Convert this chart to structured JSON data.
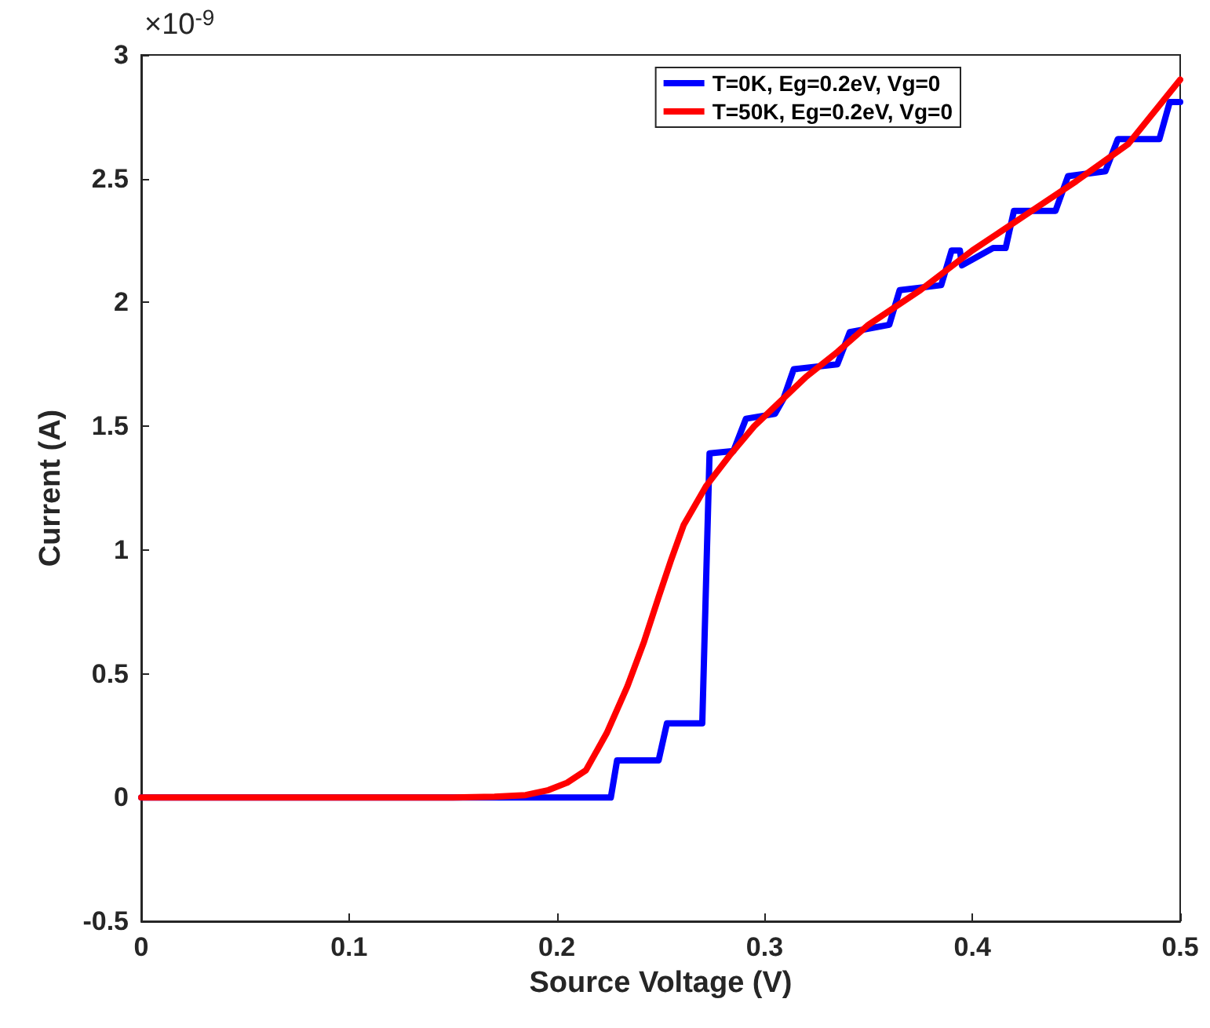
{
  "chart_data": {
    "type": "line",
    "xlabel": "Source Voltage (V)",
    "ylabel": "Current (A)",
    "annotations": [
      "×10$^{-9}$"
    ],
    "xlim": [
      0,
      0.5
    ],
    "xticks": [
      0,
      0.1,
      0.2,
      0.3,
      0.4,
      0.5
    ],
    "ylim": [
      -0.5,
      3
    ],
    "yticks": [
      -0.5,
      0,
      0.5,
      1,
      1.5,
      2,
      2.5,
      3
    ],
    "grid": false,
    "legend": "top right",
    "marker": "none",
    "line_style": "solid",
    "series": [
      {
        "name": "T=0K, Eg=0.2eV, Vg=0",
        "color": "#0000ff",
        "x": [
          0,
          0.226,
          0.229,
          0.249,
          0.253,
          0.27,
          0.2735,
          0.285,
          0.291,
          0.305,
          0.309,
          0.314,
          0.335,
          0.341,
          0.36,
          0.365,
          0.385,
          0.39,
          0.394,
          0.395,
          0.41,
          0.416,
          0.42,
          0.44,
          0.446,
          0.464,
          0.47,
          0.49,
          0.495,
          0.5
        ],
        "values": [
          0,
          0,
          0.15,
          0.15,
          0.3,
          0.3,
          1.39,
          1.4,
          1.53,
          1.55,
          1.61,
          1.73,
          1.75,
          1.88,
          1.91,
          2.05,
          2.07,
          2.21,
          2.21,
          2.15,
          2.22,
          2.22,
          2.37,
          2.37,
          2.51,
          2.53,
          2.66,
          2.66,
          2.81,
          2.81
        ]
      },
      {
        "name": "T=50K, Eg=0.2eV, Vg=0",
        "color": "#ff0000",
        "x": [
          0,
          0.15,
          0.17,
          0.185,
          0.196,
          0.205,
          0.214,
          0.224,
          0.234,
          0.242,
          0.249,
          0.255,
          0.261,
          0.272,
          0.283,
          0.295,
          0.31,
          0.32,
          0.335,
          0.35,
          0.375,
          0.4,
          0.425,
          0.45,
          0.475,
          0.5
        ],
        "values": [
          0,
          0,
          0.003,
          0.01,
          0.03,
          0.06,
          0.11,
          0.26,
          0.45,
          0.63,
          0.81,
          0.96,
          1.1,
          1.26,
          1.38,
          1.5,
          1.62,
          1.7,
          1.8,
          1.91,
          2.05,
          2.21,
          2.35,
          2.49,
          2.64,
          2.9
        ]
      }
    ]
  }
}
